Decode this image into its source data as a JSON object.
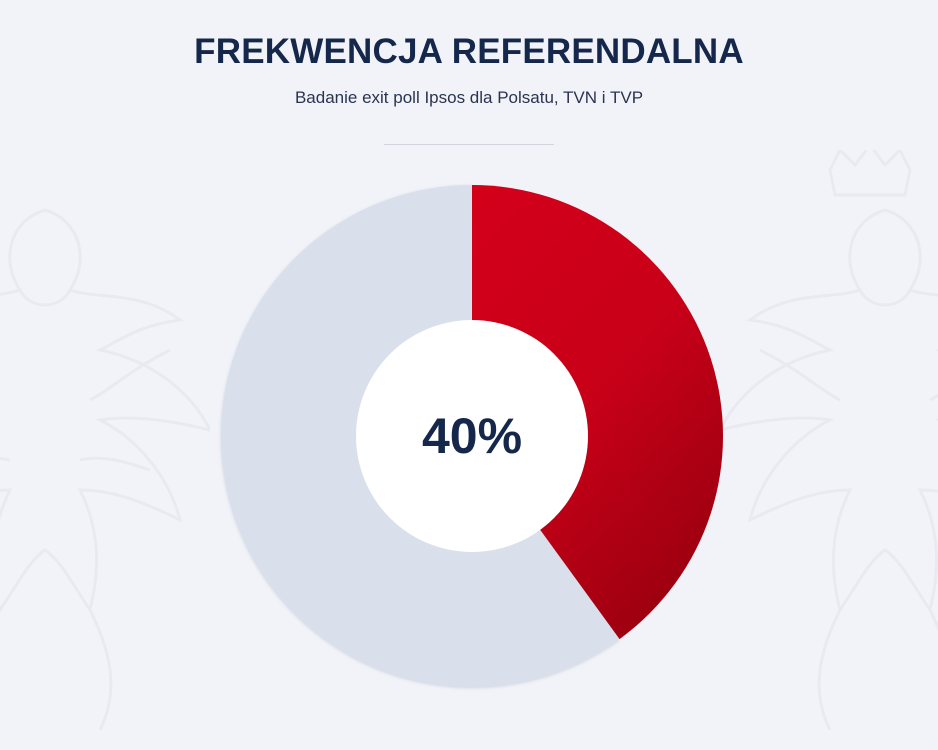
{
  "header": {
    "title": "FREKWENCJA REFERENDALNA",
    "subtitle": "Badanie exit poll Ipsos dla Polsatu, TVN i TVP"
  },
  "chart_data": {
    "type": "pie",
    "variant": "donut",
    "title": "FREKWENCJA REFERENDALNA",
    "subtitle": "Badanie exit poll Ipsos dla Polsatu, TVN i TVP",
    "center_label": "40%",
    "slices": [
      {
        "value": 40,
        "color": "#d4001a"
      },
      {
        "value": 60,
        "color": "#d9dfeb"
      }
    ]
  },
  "colors": {
    "accent": "#d4001a",
    "accent_dark": "#a0000f",
    "remainder": "#d9dfeb",
    "title": "#15284b",
    "background": "#f1f3f8"
  },
  "decor": {
    "background_icon": "polish-eagle-emblem-icon"
  }
}
